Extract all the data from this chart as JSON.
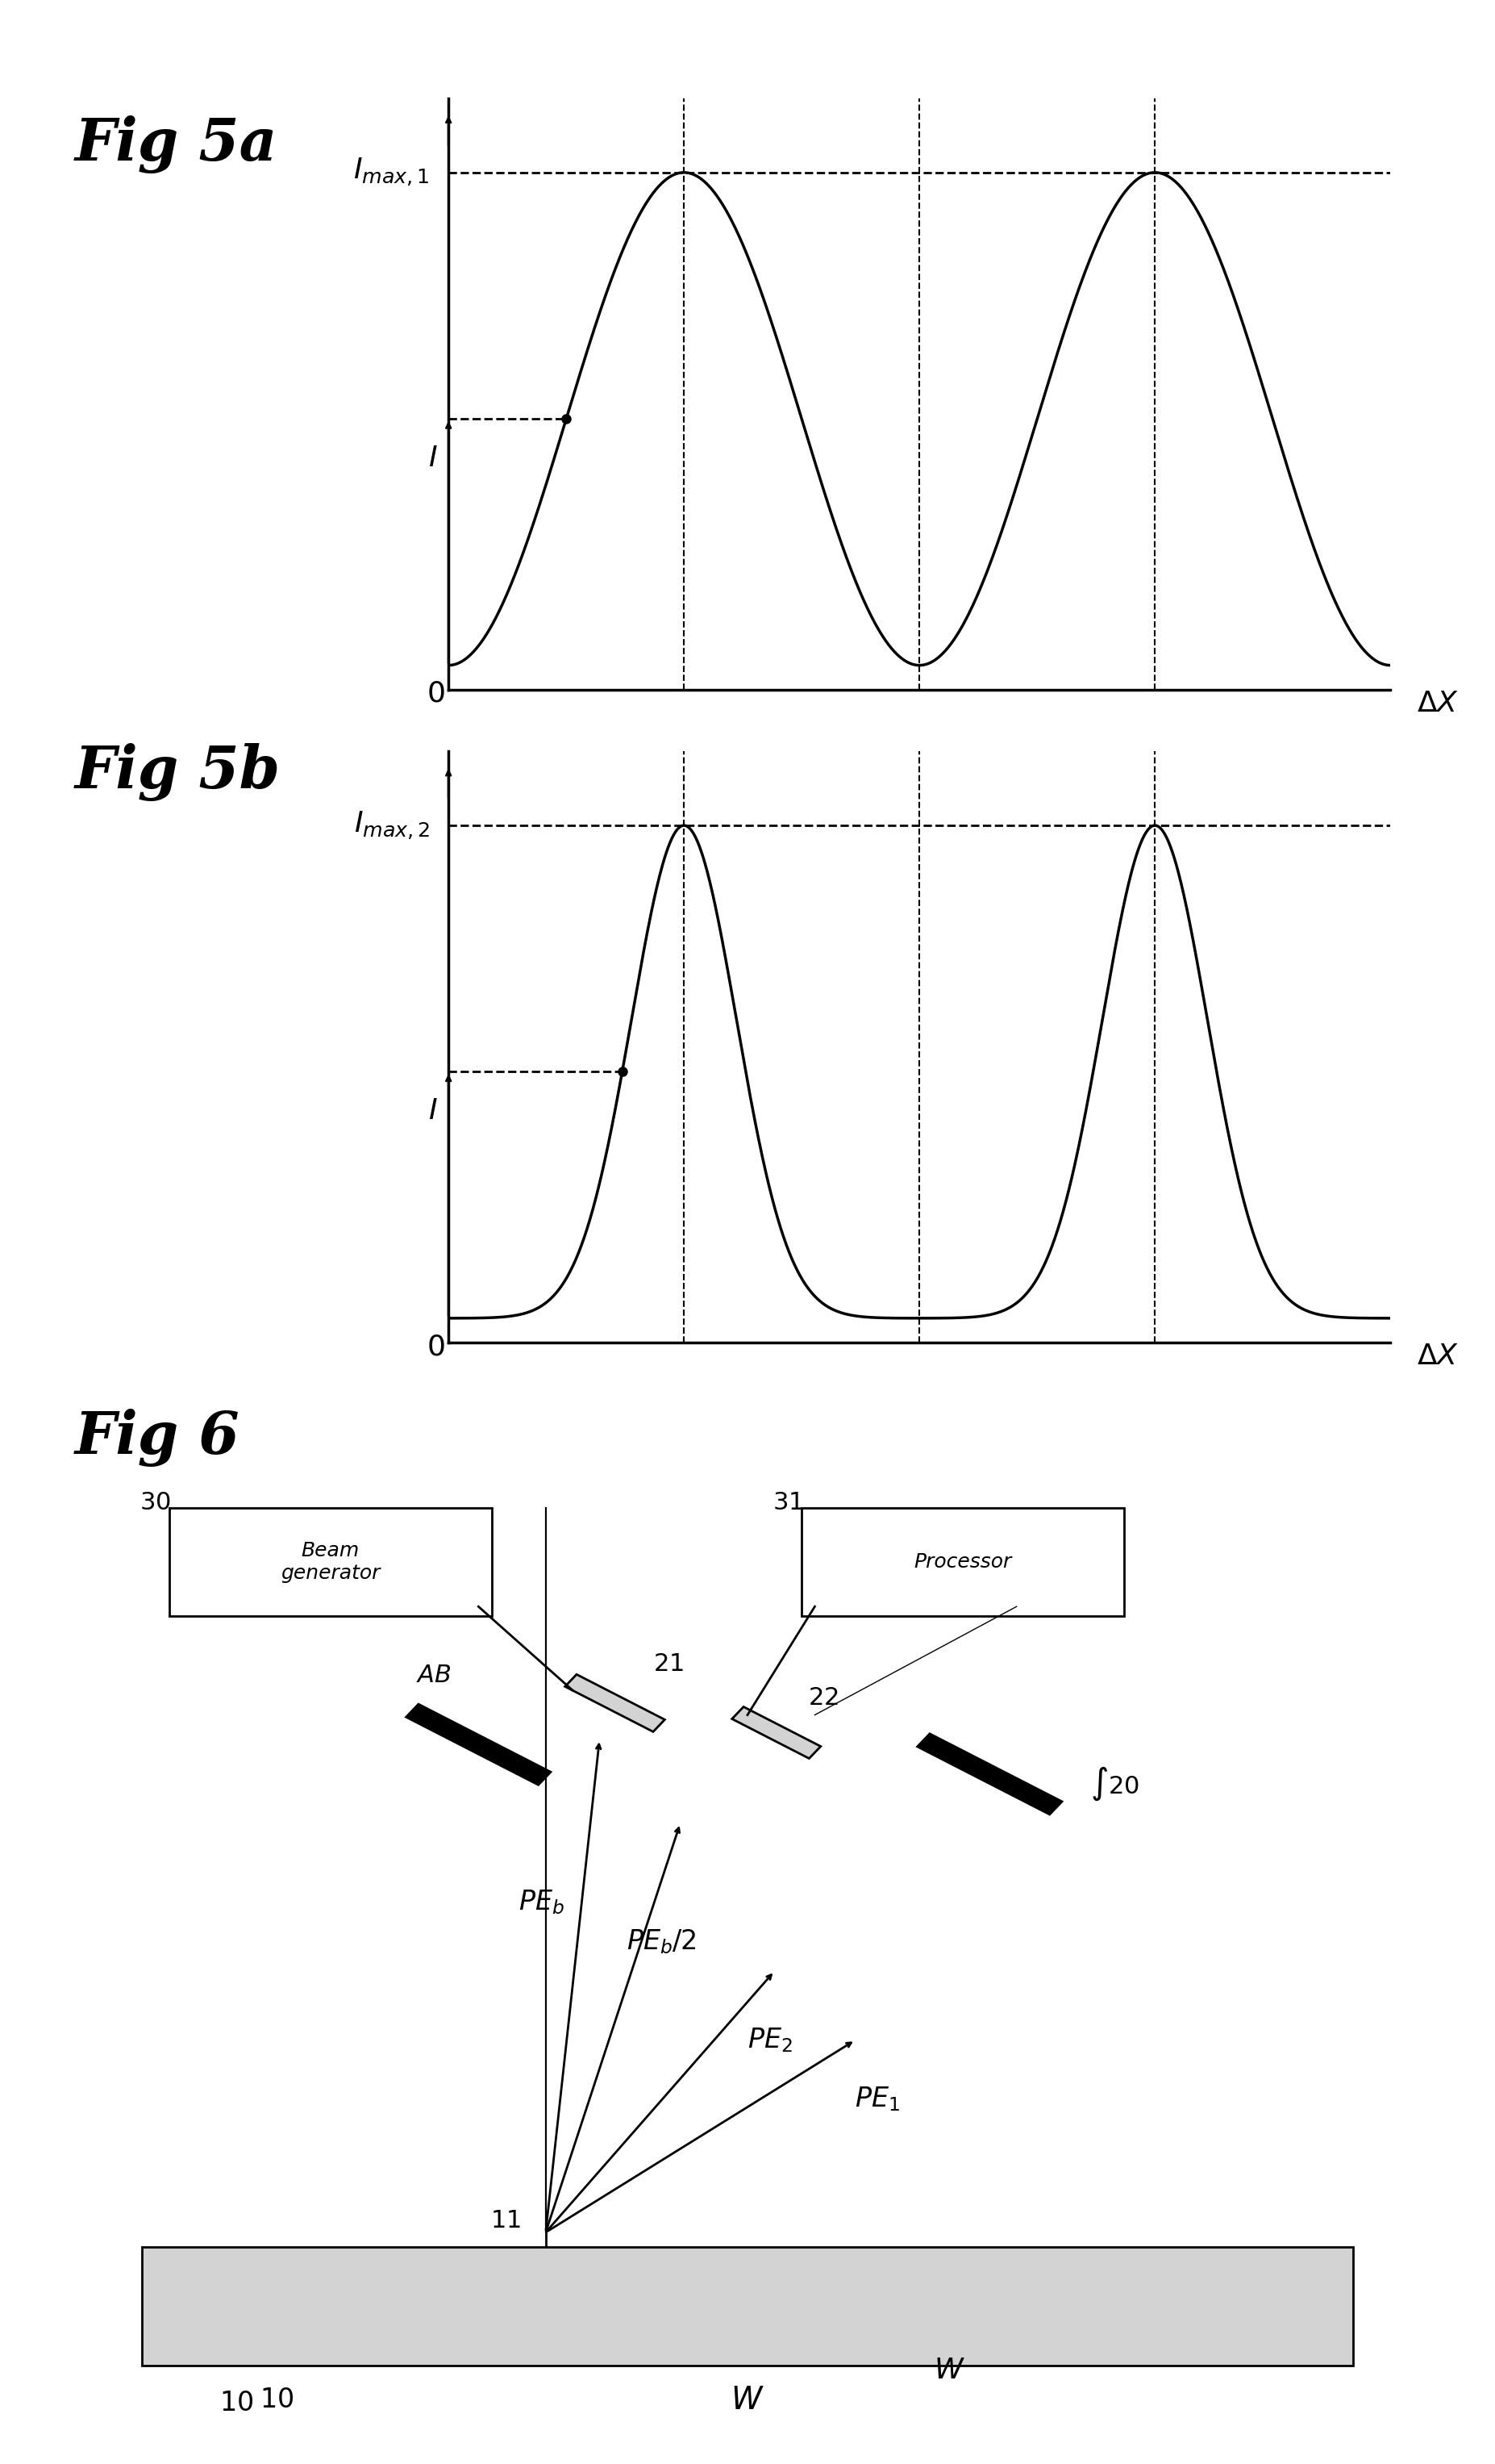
{
  "fig_label_fontsize": 52,
  "axis_label_fontsize": 28,
  "annotation_fontsize": 26,
  "bg_color": "#ffffff",
  "line_color": "#000000",
  "fig5a_label": "Fig 5a",
  "fig5b_label": "Fig 5b",
  "fig6_label": "Fig 6",
  "imax1_label": "I_{max,1}",
  "imax2_label": "I_{max,2}",
  "I_label": "I",
  "deltaX_label": "ΔX",
  "zero_label": "0"
}
